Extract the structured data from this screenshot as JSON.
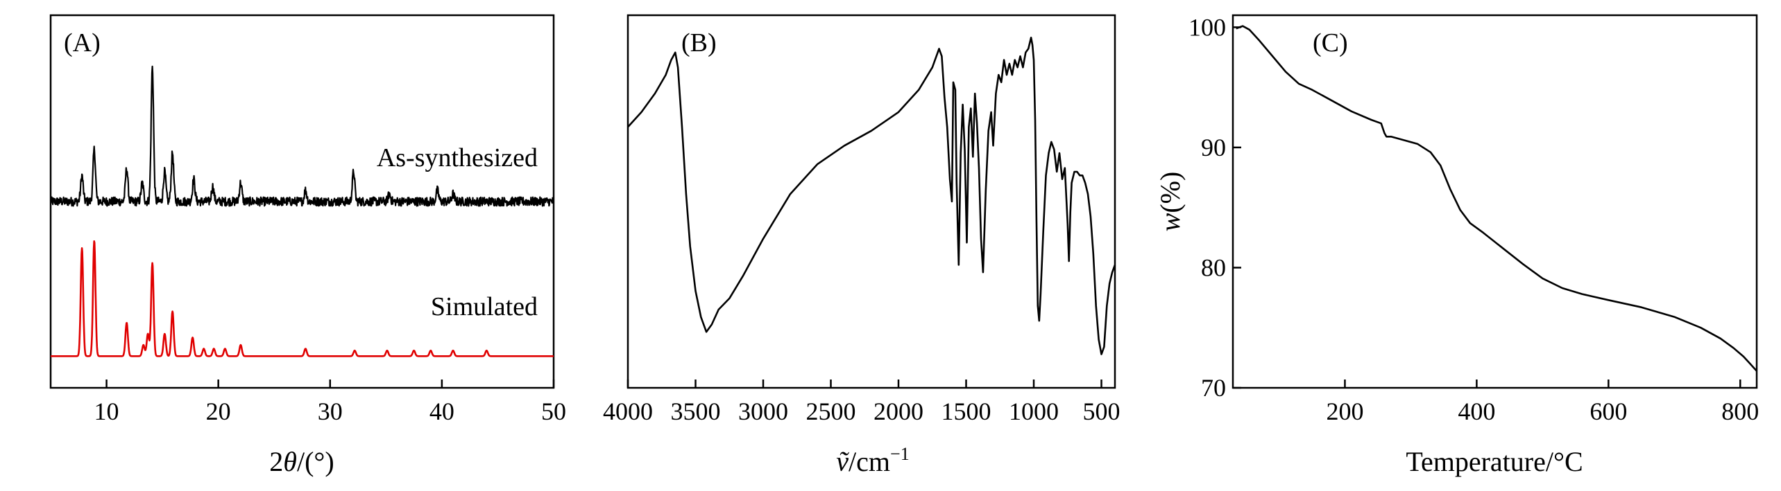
{
  "chart_data": [
    {
      "type": "line",
      "panel_label": "(A)",
      "xlabel": "2θ/(°)",
      "xlabel_parts": {
        "pre": "2",
        "var": "θ",
        "post": "/(°)"
      },
      "ylabel": "",
      "xlim": [
        5,
        50
      ],
      "xticks": [
        10,
        20,
        30,
        40,
        50
      ],
      "grid": false,
      "annotations": [
        "As-synthesized",
        "Simulated"
      ],
      "series": [
        {
          "name": "As-synthesized",
          "color": "#000000",
          "baseline": 0.16,
          "noise": 0.012,
          "peaks": [
            {
              "x": 7.8,
              "h": 0.07
            },
            {
              "x": 8.9,
              "h": 0.14
            },
            {
              "x": 11.8,
              "h": 0.09
            },
            {
              "x": 13.2,
              "h": 0.05
            },
            {
              "x": 14.1,
              "h": 0.36
            },
            {
              "x": 15.2,
              "h": 0.08
            },
            {
              "x": 15.9,
              "h": 0.13
            },
            {
              "x": 17.8,
              "h": 0.06
            },
            {
              "x": 19.5,
              "h": 0.04
            },
            {
              "x": 22.0,
              "h": 0.05
            },
            {
              "x": 27.8,
              "h": 0.03
            },
            {
              "x": 32.1,
              "h": 0.08
            },
            {
              "x": 35.3,
              "h": 0.02
            },
            {
              "x": 39.6,
              "h": 0.03
            },
            {
              "x": 41.0,
              "h": 0.02
            }
          ]
        },
        {
          "name": "Simulated",
          "color": "#e00000",
          "baseline": 0.0,
          "noise": 0.0,
          "peaks": [
            {
              "x": 7.8,
              "h": 0.29
            },
            {
              "x": 8.9,
              "h": 0.31
            },
            {
              "x": 11.8,
              "h": 0.09
            },
            {
              "x": 13.3,
              "h": 0.03
            },
            {
              "x": 13.7,
              "h": 0.06
            },
            {
              "x": 14.1,
              "h": 0.25
            },
            {
              "x": 15.2,
              "h": 0.06
            },
            {
              "x": 15.9,
              "h": 0.12
            },
            {
              "x": 17.7,
              "h": 0.05
            },
            {
              "x": 18.7,
              "h": 0.02
            },
            {
              "x": 19.6,
              "h": 0.02
            },
            {
              "x": 20.6,
              "h": 0.02
            },
            {
              "x": 22.0,
              "h": 0.03
            },
            {
              "x": 27.8,
              "h": 0.02
            },
            {
              "x": 32.2,
              "h": 0.015
            },
            {
              "x": 35.1,
              "h": 0.015
            },
            {
              "x": 37.5,
              "h": 0.015
            },
            {
              "x": 39.0,
              "h": 0.015
            },
            {
              "x": 41.0,
              "h": 0.015
            },
            {
              "x": 44.0,
              "h": 0.015
            }
          ]
        }
      ]
    },
    {
      "type": "line",
      "panel_label": "(B)",
      "xlabel": "ṽ/cm−1",
      "xlabel_parts": {
        "var": "ṽ",
        "post": "/cm",
        "sup": "−1"
      },
      "ylabel": "",
      "xlim": [
        4000,
        400
      ],
      "xticks": [
        4000,
        3500,
        3000,
        2500,
        2000,
        1500,
        1000,
        500
      ],
      "grid": false,
      "series": [
        {
          "name": "",
          "color": "#000000",
          "x": [
            4000,
            3900,
            3800,
            3720,
            3680,
            3650,
            3630,
            3600,
            3570,
            3540,
            3500,
            3460,
            3420,
            3380,
            3330,
            3250,
            3150,
            3000,
            2800,
            2600,
            2400,
            2200,
            2000,
            1850,
            1750,
            1700,
            1680,
            1660,
            1640,
            1620,
            1605,
            1595,
            1580,
            1570,
            1555,
            1540,
            1525,
            1510,
            1495,
            1480,
            1465,
            1450,
            1435,
            1420,
            1405,
            1390,
            1375,
            1355,
            1335,
            1315,
            1300,
            1280,
            1260,
            1240,
            1220,
            1200,
            1180,
            1160,
            1140,
            1120,
            1100,
            1080,
            1060,
            1040,
            1020,
            1010,
            1000,
            990,
            980,
            970,
            960,
            950,
            930,
            910,
            890,
            870,
            850,
            830,
            810,
            790,
            770,
            750,
            740,
            730,
            720,
            700,
            680,
            660,
            640,
            620,
            600,
            580,
            560,
            540,
            520,
            500,
            480,
            460,
            440,
            420,
            400
          ],
          "y": [
            0.7,
            0.74,
            0.79,
            0.84,
            0.88,
            0.9,
            0.86,
            0.7,
            0.52,
            0.38,
            0.26,
            0.19,
            0.15,
            0.17,
            0.21,
            0.24,
            0.3,
            0.4,
            0.52,
            0.6,
            0.65,
            0.69,
            0.74,
            0.8,
            0.86,
            0.91,
            0.89,
            0.78,
            0.7,
            0.56,
            0.5,
            0.82,
            0.8,
            0.55,
            0.33,
            0.63,
            0.76,
            0.64,
            0.39,
            0.7,
            0.75,
            0.62,
            0.79,
            0.71,
            0.59,
            0.4,
            0.31,
            0.53,
            0.69,
            0.74,
            0.65,
            0.79,
            0.84,
            0.82,
            0.88,
            0.84,
            0.87,
            0.84,
            0.88,
            0.86,
            0.89,
            0.86,
            0.9,
            0.91,
            0.94,
            0.92,
            0.88,
            0.72,
            0.45,
            0.22,
            0.18,
            0.25,
            0.42,
            0.57,
            0.63,
            0.66,
            0.64,
            0.58,
            0.63,
            0.56,
            0.59,
            0.44,
            0.34,
            0.47,
            0.55,
            0.58,
            0.58,
            0.57,
            0.57,
            0.55,
            0.52,
            0.46,
            0.36,
            0.22,
            0.13,
            0.09,
            0.11,
            0.22,
            0.28,
            0.31,
            0.33
          ]
        }
      ]
    },
    {
      "type": "line",
      "panel_label": "(C)",
      "xlabel": "Temperature/°C",
      "ylabel": "w(%)",
      "ylabel_parts": {
        "var": "w",
        "post": "(%)"
      },
      "xlim": [
        30,
        825
      ],
      "ylim": [
        70,
        101
      ],
      "xticks": [
        200,
        400,
        600,
        800
      ],
      "yticks": [
        70,
        80,
        90,
        100
      ],
      "grid": false,
      "series": [
        {
          "name": "",
          "color": "#000000",
          "x": [
            35,
            45,
            55,
            70,
            90,
            110,
            130,
            150,
            180,
            210,
            240,
            255,
            260,
            263,
            270,
            290,
            310,
            330,
            345,
            360,
            375,
            390,
            410,
            440,
            470,
            500,
            530,
            560,
            600,
            650,
            700,
            740,
            770,
            790,
            805,
            815,
            825
          ],
          "y": [
            99.9,
            100.1,
            99.8,
            98.9,
            97.6,
            96.3,
            95.3,
            94.8,
            93.9,
            93.0,
            92.3,
            92.0,
            91.2,
            90.9,
            90.9,
            90.6,
            90.3,
            89.6,
            88.5,
            86.5,
            84.8,
            83.7,
            82.9,
            81.6,
            80.3,
            79.1,
            78.3,
            77.8,
            77.3,
            76.7,
            75.9,
            75.0,
            74.1,
            73.3,
            72.6,
            72.0,
            71.4
          ]
        }
      ]
    }
  ]
}
